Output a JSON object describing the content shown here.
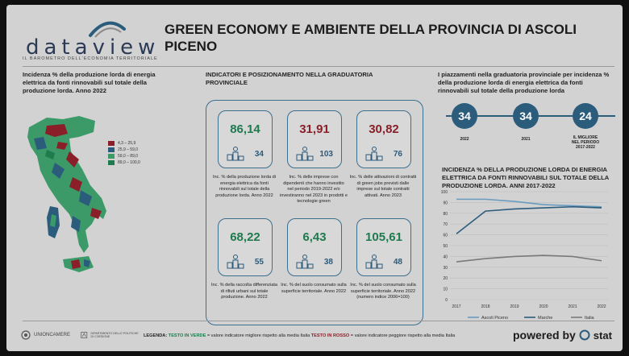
{
  "logo": {
    "word": "dataview",
    "subtitle": "IL BAROMETRO DELL'ECONOMIA TERRITORIALE"
  },
  "title": "GREEN ECONOMY E AMBIENTE DELLA PROVINCIA DI ASCOLI PICENO",
  "left_heading": "Incidenza % della produzione lorda di energia elettrica da fonti rinnovabili sul totale della produzione lorda. Anno 2022",
  "map_legend": [
    {
      "label": "4,3 – 25,9",
      "color": "#8a1f2a"
    },
    {
      "label": "25,9 – 59,0",
      "color": "#2b5c7c"
    },
    {
      "label": "59,0 – 89,0",
      "color": "#3b9a68"
    },
    {
      "label": "89,0 – 100,0",
      "color": "#1f7a4e"
    }
  ],
  "mid_heading": "INDICATORI E POSIZIONAMENTO NELLA GRADUATORIA PROVINCIALE",
  "cards": [
    {
      "value": "86,14",
      "rank": "34",
      "color": "green",
      "desc": "Inc. % della produzione lorda di energia elettrica da fonti rinnovabili sul totale della produzione lorda. Anno 2022"
    },
    {
      "value": "31,91",
      "rank": "103",
      "color": "red",
      "desc": "Inc. % delle imprese con dipendenti che hanno investito nel periodo 2019-2022 e/o investiranno nel 2023 in prodotti e tecnologie green"
    },
    {
      "value": "30,82",
      "rank": "76",
      "color": "red",
      "desc": "Inc. % delle attivazioni di contratti di green jobs previsti dalle imprese sul totale contratti attivati. Anno 2023"
    },
    {
      "value": "68,22",
      "rank": "55",
      "color": "green",
      "desc": "Inc. % della raccolta differenziata di rifiuti urbani sul totale produzione. Anno 2022"
    },
    {
      "value": "6,43",
      "rank": "38",
      "color": "green",
      "desc": "Inc. % del suolo consumato sulla superficie territoriale. Anno 2022"
    },
    {
      "value": "105,61",
      "rank": "48",
      "color": "green",
      "desc": "Inc. % del suolo consumato sulla superficie territoriale. Anno 2022 (numero indice 2006=100)"
    }
  ],
  "right_heading": "I piazzamenti nella graduatoria provinciale per incidenza % della produzione lorda di energia elettrica da fonti rinnovabili sul totale della produzione lorda",
  "placements": [
    {
      "value": "34",
      "label": "2022"
    },
    {
      "value": "34",
      "label": "2021"
    },
    {
      "value": "24",
      "label": "IL MIGLIORE NEL PERIODO 2017-2022"
    }
  ],
  "chart_heading": "INCIDENZA % DELLA PRODUZIONE LORDA DI ENERGIA ELETTRICA DA FONTI RINNOVABILI SUL TOTALE DELLA PRODUZIONE LORDA. ANNI 2017-2022",
  "chart_data": {
    "type": "line",
    "x": [
      "2017",
      "2018",
      "2019",
      "2020",
      "2021",
      "2022"
    ],
    "ylim": [
      0,
      100
    ],
    "yticks": [
      "0",
      "10",
      "20",
      "30",
      "40",
      "50",
      "60",
      "70",
      "80",
      "90",
      "100"
    ],
    "series": [
      {
        "name": "Ascoli Piceno",
        "color": "#6a9cc0",
        "values": [
          93,
          93,
          91,
          88,
          87,
          86
        ]
      },
      {
        "name": "Marche",
        "color": "#2b5c7c",
        "values": [
          61,
          82,
          84,
          85,
          86,
          85
        ]
      },
      {
        "name": "Italia",
        "color": "#7a7a7a",
        "values": [
          35,
          38,
          40,
          41,
          40,
          36
        ]
      }
    ]
  },
  "footer": {
    "logo1": "UNIONCAMERE",
    "logo2": "DIPARTIMENTO DELLE POLITICHE DI COESIONE",
    "legend_prefix": "LEGENDA:",
    "legend_green": "TESTO IN VERDE",
    "legend_green_text": " = valore indicatore migliore rispetto alla media Italia ",
    "legend_red": "TESTO IN ROSSO",
    "legend_red_text": " = valore indicatore peggiore rispetto alla media Italia",
    "powered": "powered by",
    "powered_brand": "stat"
  }
}
